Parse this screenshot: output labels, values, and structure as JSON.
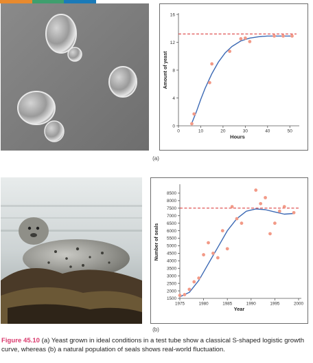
{
  "caption": {
    "figure_label": "Figure 45.10",
    "text": " (a) Yeast grown in ideal conditions in a test tube show a classical S-shaped logistic growth curve, whereas (b) a natural population of seals shows real-world fluctuation."
  },
  "colors": {
    "accent": "#d9396c",
    "curve": "#3b69b4",
    "points": "#f29a87",
    "carrying_capacity": "#d82a2a",
    "frame": "#6b6b6b"
  },
  "top_strip_colors": [
    "#e88a2e",
    "#3f9f6e",
    "#1a7ab8"
  ],
  "panels": {
    "a": {
      "label": "(a)"
    },
    "b": {
      "label": "(b)"
    }
  },
  "chart_data": [
    {
      "type": "scatter",
      "title": "",
      "xlabel": "Hours",
      "ylabel": "Amount of yeast",
      "xlim": [
        0,
        53
      ],
      "ylim": [
        0,
        16
      ],
      "xticks": [
        0,
        10,
        20,
        30,
        40,
        50
      ],
      "yticks": [
        0,
        4,
        8,
        12,
        16
      ],
      "grid": false,
      "carrying_capacity": 13.2,
      "points": [
        {
          "x": 6,
          "y": 0.3
        },
        {
          "x": 7,
          "y": 1.7
        },
        {
          "x": 14,
          "y": 6.2
        },
        {
          "x": 15,
          "y": 8.9
        },
        {
          "x": 23,
          "y": 10.7
        },
        {
          "x": 28,
          "y": 12.5
        },
        {
          "x": 30,
          "y": 12.6
        },
        {
          "x": 32,
          "y": 12.1
        },
        {
          "x": 43,
          "y": 12.9
        },
        {
          "x": 47,
          "y": 12.9
        },
        {
          "x": 51,
          "y": 12.9
        }
      ],
      "fit_curve": [
        {
          "x": 6,
          "y": 0.4
        },
        {
          "x": 8,
          "y": 2.0
        },
        {
          "x": 10,
          "y": 3.8
        },
        {
          "x": 12,
          "y": 5.4
        },
        {
          "x": 15,
          "y": 7.5
        },
        {
          "x": 18,
          "y": 9.2
        },
        {
          "x": 21,
          "y": 10.5
        },
        {
          "x": 24,
          "y": 11.4
        },
        {
          "x": 28,
          "y": 12.2
        },
        {
          "x": 32,
          "y": 12.6
        },
        {
          "x": 36,
          "y": 12.8
        },
        {
          "x": 40,
          "y": 12.9
        },
        {
          "x": 45,
          "y": 12.9
        },
        {
          "x": 51,
          "y": 12.9
        }
      ]
    },
    {
      "type": "scatter",
      "title": "",
      "xlabel": "Year",
      "ylabel": "Number of seals",
      "xlim": [
        1975,
        2000
      ],
      "ylim": [
        1500,
        9000
      ],
      "xticks": [
        1975,
        1980,
        1985,
        1990,
        1995,
        2000
      ],
      "yticks": [
        1500,
        2000,
        2500,
        3000,
        3500,
        4000,
        4500,
        5000,
        5500,
        6000,
        6500,
        7000,
        7500,
        8000,
        8500
      ],
      "grid": false,
      "carrying_capacity": 7500,
      "points": [
        {
          "x": 1975,
          "y": 1700
        },
        {
          "x": 1976,
          "y": 1750
        },
        {
          "x": 1977,
          "y": 2100
        },
        {
          "x": 1978,
          "y": 2600
        },
        {
          "x": 1979,
          "y": 2850
        },
        {
          "x": 1980,
          "y": 4400
        },
        {
          "x": 1981,
          "y": 5200
        },
        {
          "x": 1982,
          "y": 4500
        },
        {
          "x": 1983,
          "y": 4200
        },
        {
          "x": 1984,
          "y": 6000
        },
        {
          "x": 1985,
          "y": 4800
        },
        {
          "x": 1986,
          "y": 7600
        },
        {
          "x": 1987,
          "y": 6800
        },
        {
          "x": 1988,
          "y": 6500
        },
        {
          "x": 1991,
          "y": 8700
        },
        {
          "x": 1992,
          "y": 7800
        },
        {
          "x": 1993,
          "y": 8200
        },
        {
          "x": 1994,
          "y": 5800
        },
        {
          "x": 1995,
          "y": 6500
        },
        {
          "x": 1996,
          "y": 7300
        },
        {
          "x": 1997,
          "y": 7600
        },
        {
          "x": 1999,
          "y": 7200
        }
      ],
      "fit_curve": [
        {
          "x": 1975,
          "y": 1600
        },
        {
          "x": 1977,
          "y": 1900
        },
        {
          "x": 1979,
          "y": 2700
        },
        {
          "x": 1981,
          "y": 3800
        },
        {
          "x": 1983,
          "y": 4900
        },
        {
          "x": 1985,
          "y": 6000
        },
        {
          "x": 1987,
          "y": 6800
        },
        {
          "x": 1989,
          "y": 7300
        },
        {
          "x": 1991,
          "y": 7450
        },
        {
          "x": 1993,
          "y": 7400
        },
        {
          "x": 1995,
          "y": 7250
        },
        {
          "x": 1997,
          "y": 7100
        },
        {
          "x": 1999,
          "y": 7150
        }
      ]
    }
  ]
}
